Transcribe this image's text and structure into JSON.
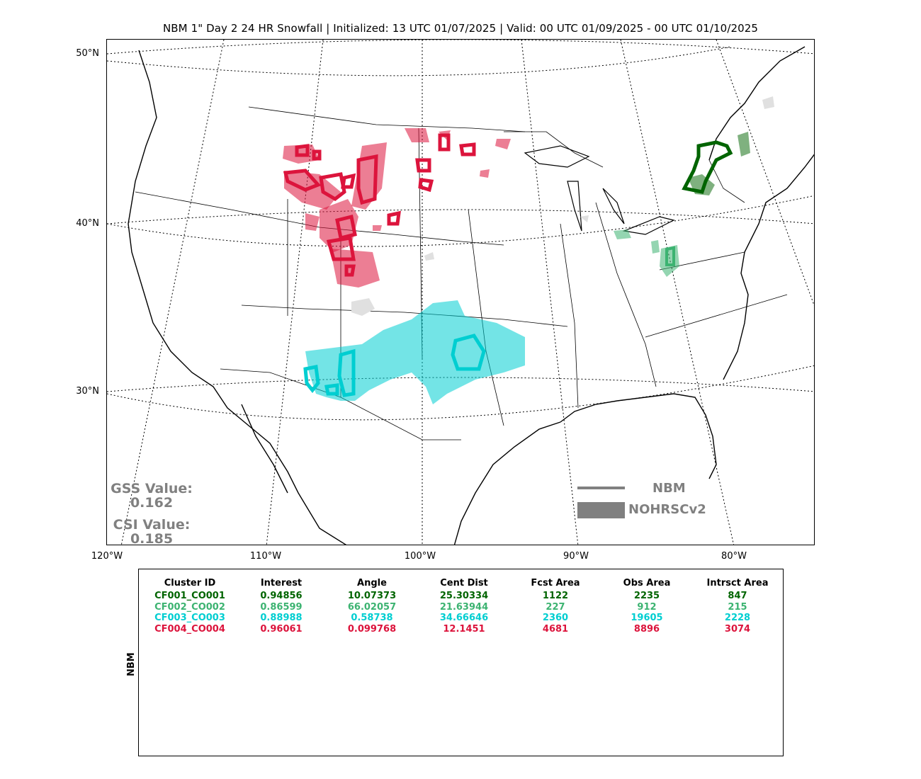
{
  "title": "NBM 1\" Day 2 24 HR Snowfall | Initialized: 13 UTC 01/07/2025 | Valid: 00 UTC 01/09/2025 - 00 UTC 01/10/2025",
  "map": {
    "lat_labels": [
      "50°N",
      "40°N",
      "30°N"
    ],
    "lon_labels": [
      "120°W",
      "110°W",
      "100°W",
      "90°W",
      "80°W"
    ],
    "colors": {
      "cluster_1": "#006400",
      "cluster_2": "#3cb371",
      "cluster_3": "#00ced1",
      "cluster_4": "#dc143c",
      "obs_shade_gray": "#e0e0e0",
      "legend_gray": "#808080"
    }
  },
  "scores": {
    "gss_label": "GSS Value:",
    "gss_value": "0.162",
    "csi_label": "CSI Value:",
    "csi_value": "0.185"
  },
  "legend": {
    "forecast_label": "NBM",
    "observed_label": "NOHRSCv2"
  },
  "table": {
    "side_label": "NBM",
    "headers": [
      "Cluster ID",
      "Interest",
      "Angle",
      "Cent Dist",
      "Fcst Area",
      "Obs Area",
      "Intrsct Area"
    ],
    "rows": [
      {
        "color": "#006400",
        "cells": [
          "CF001_CO001",
          "0.94856",
          "10.07373",
          "25.30334",
          "1122",
          "2235",
          "847"
        ]
      },
      {
        "color": "#3cb371",
        "cells": [
          "CF002_CO002",
          "0.86599",
          "66.02057",
          "21.63944",
          "227",
          "912",
          "215"
        ]
      },
      {
        "color": "#00ced1",
        "cells": [
          "CF003_CO003",
          "0.88988",
          "0.58738",
          "34.66646",
          "2360",
          "19605",
          "2228"
        ]
      },
      {
        "color": "#dc143c",
        "cells": [
          "CF004_CO004",
          "0.96061",
          "0.099768",
          "12.1451",
          "4681",
          "8896",
          "3074"
        ]
      }
    ]
  }
}
